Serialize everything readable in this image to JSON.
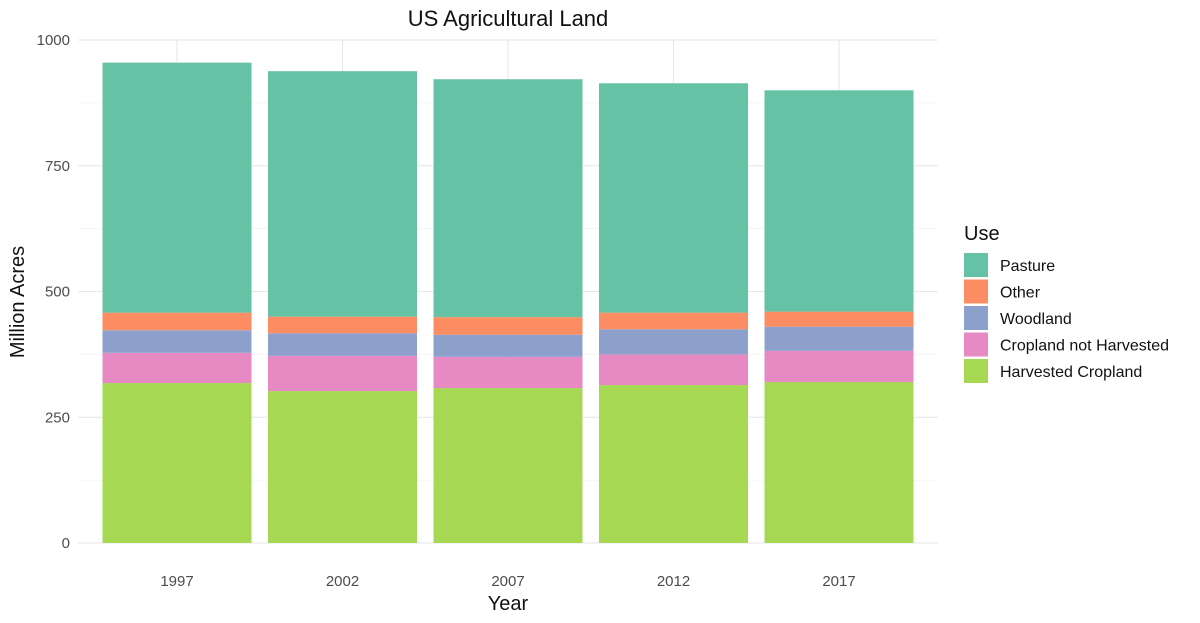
{
  "chart_data": {
    "type": "bar",
    "stacked": true,
    "title": "US Agricultural Land",
    "xlabel": "Year",
    "ylabel": "Million Acres",
    "categories": [
      "1997",
      "2002",
      "2007",
      "2012",
      "2017"
    ],
    "ylim": [
      0,
      1000
    ],
    "yticks": [
      0,
      250,
      500,
      750,
      1000
    ],
    "grid": true,
    "legend": {
      "title": "Use",
      "position": "right"
    },
    "series": [
      {
        "name": "Harvested Cropland",
        "color": "#a6d854",
        "values": [
          318,
          302,
          308,
          314,
          320
        ]
      },
      {
        "name": "Cropland not Harvested",
        "color": "#e78ac3",
        "values": [
          60,
          70,
          62,
          61,
          62
        ]
      },
      {
        "name": "Woodland",
        "color": "#8da0cb",
        "values": [
          45,
          45,
          44,
          50,
          48
        ]
      },
      {
        "name": "Other",
        "color": "#fc8d62",
        "values": [
          35,
          33,
          35,
          33,
          30
        ]
      },
      {
        "name": "Pasture",
        "color": "#66c2a5",
        "values": [
          497,
          488,
          473,
          456,
          440
        ]
      }
    ]
  }
}
